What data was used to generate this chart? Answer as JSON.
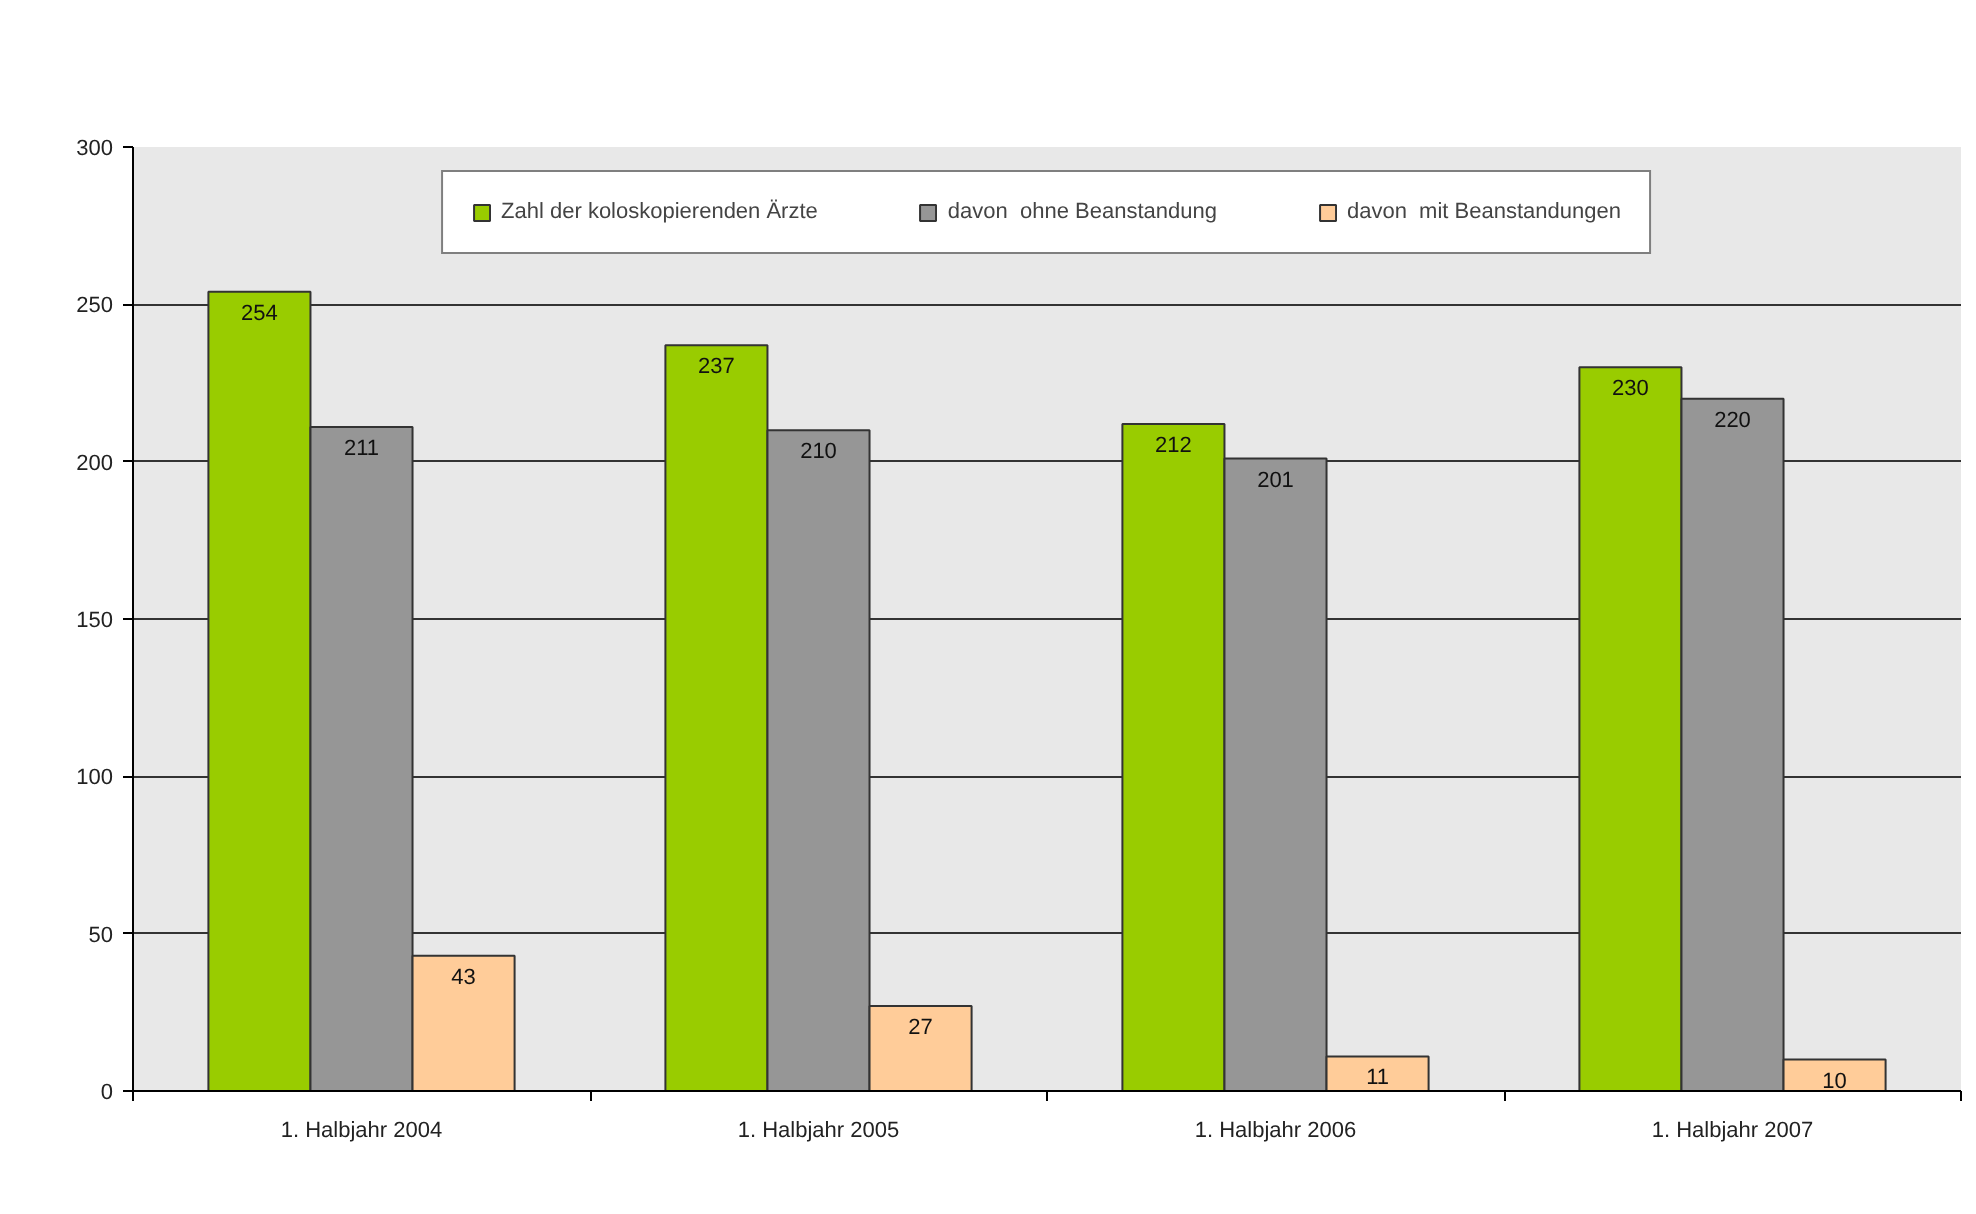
{
  "chart_data": {
    "type": "bar",
    "categories": [
      "1. Halbjahr 2004",
      "1. Halbjahr 2005",
      "1. Halbjahr 2006",
      "1. Halbjahr 2007"
    ],
    "series": [
      {
        "name": "Zahl der koloskopierenden Ärzte",
        "color": "#99cc00",
        "values": [
          254,
          237,
          212,
          230
        ]
      },
      {
        "name": "davon  ohne Beanstandung",
        "color": "#969696",
        "values": [
          211,
          210,
          201,
          220
        ]
      },
      {
        "name": "davon  mit Beanstandungen",
        "color": "#ffcc99",
        "values": [
          43,
          27,
          11,
          10
        ]
      }
    ],
    "ylim": [
      0,
      300
    ],
    "yticks": [
      0,
      50,
      100,
      150,
      200,
      250,
      300
    ],
    "grid": "y",
    "legend": "top",
    "data_labels": true
  }
}
